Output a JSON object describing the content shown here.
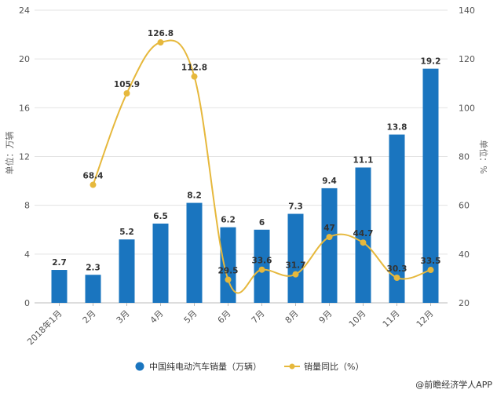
{
  "chart_data": {
    "type": "bar+line",
    "categories": [
      "2018年1月",
      "2月",
      "3月",
      "4月",
      "5月",
      "6月",
      "7月",
      "8月",
      "9月",
      "10月",
      "11月",
      "12月"
    ],
    "series": [
      {
        "name": "中国纯电动汽车销量（万辆）",
        "type": "bar",
        "axis": "left",
        "color": "#1a75bf",
        "values": [
          2.7,
          2.3,
          5.2,
          6.5,
          8.2,
          6.2,
          6,
          7.3,
          9.4,
          11.1,
          13.8,
          19.2
        ],
        "labels": [
          "2.7",
          "2.3",
          "5.2",
          "6.5",
          "8.2",
          "6.2",
          "6",
          "7.3",
          "9.4",
          "11.1",
          "13.8",
          "19.2"
        ]
      },
      {
        "name": "销量同比（%）",
        "type": "line",
        "axis": "right",
        "color": "#e6b83c",
        "smooth": true,
        "values": [
          null,
          68.4,
          105.9,
          126.8,
          112.8,
          29.5,
          33.6,
          31.7,
          47,
          44.7,
          30.3,
          33.5
        ],
        "labels": [
          "",
          "68.4",
          "105.9",
          "126.8",
          "112.8",
          "29.5",
          "33.6",
          "31.7",
          "47",
          "44.7",
          "30.3",
          "33.5"
        ]
      }
    ],
    "y_left": {
      "label": "单位：万辆",
      "range": [
        0,
        24
      ],
      "ticks": [
        "0",
        "4",
        "8",
        "12",
        "16",
        "20",
        "24"
      ]
    },
    "y_right": {
      "label": "单位：%",
      "range": [
        20,
        140
      ],
      "ticks": [
        "20",
        "40",
        "60",
        "80",
        "100",
        "120",
        "140"
      ]
    },
    "grid": true,
    "legend": "bottom"
  },
  "footer": {
    "source": "@前瞻经济学人APP"
  }
}
